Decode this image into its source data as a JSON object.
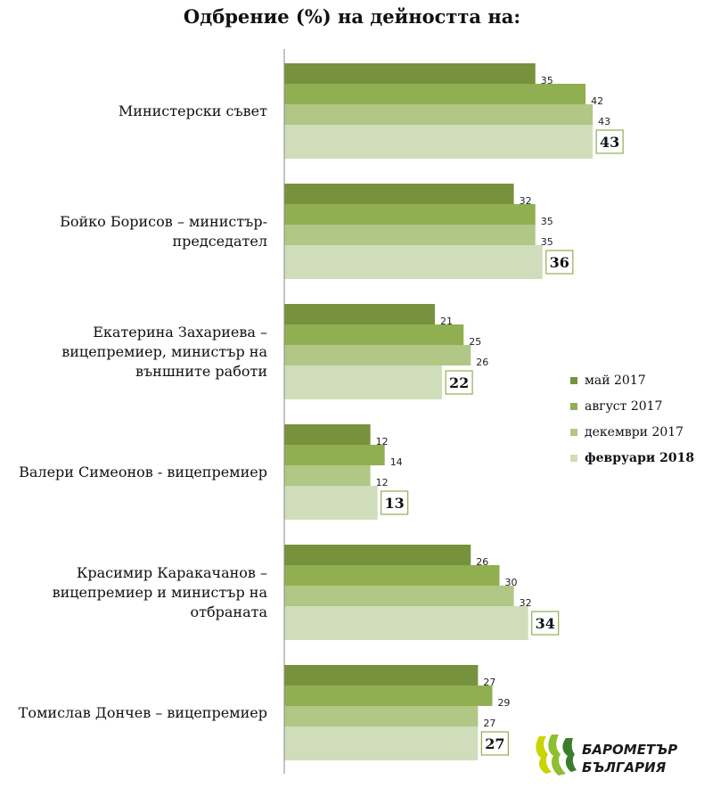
{
  "chart_data": {
    "type": "bar",
    "orientation": "horizontal",
    "title": "Одбрение (%) на дейността на:",
    "categories": [
      [
        "Министерски съвет"
      ],
      [
        "Бойко Борисов – министър-",
        "председател"
      ],
      [
        "Екатерина Захариева –",
        "вицепремиер, министър на",
        "външните работи"
      ],
      [
        "Валери Симеонов - вицепремиер"
      ],
      [
        "Красимир Каракачанов –",
        "вицепремиер и министър на",
        "отбраната"
      ],
      [
        "Томислав Дончев – вицепремиер"
      ]
    ],
    "series": [
      {
        "name": "май  2017",
        "color": "#77923C",
        "bold": false,
        "values": [
          35,
          32,
          21,
          12,
          26,
          27
        ]
      },
      {
        "name": "август  2017",
        "color": "#8FAF51",
        "bold": false,
        "values": [
          42,
          35,
          25,
          14,
          30,
          29
        ]
      },
      {
        "name": "декември  2017",
        "color": "#B0C785",
        "bold": false,
        "values": [
          43,
          35,
          26,
          12,
          32,
          27
        ]
      },
      {
        "name": "февруари 2018",
        "color": "#D0DDBB",
        "bold": true,
        "values": [
          43,
          36,
          22,
          13,
          34,
          27
        ]
      }
    ],
    "xlim": [
      0,
      50
    ],
    "xlabel": "",
    "ylabel": "",
    "grid": false,
    "legend": "right"
  },
  "logo": {
    "line1": "БАРОМЕТЪР",
    "line2": "БЪЛГАРИЯ"
  }
}
